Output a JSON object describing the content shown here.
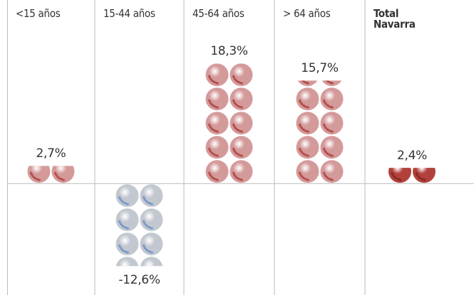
{
  "chart_data": {
    "type": "pictogram-bar",
    "categories": [
      "<15 años",
      "15-44 años",
      "45-64 años",
      "> 64 años",
      "Total Navarra"
    ],
    "values": [
      2.7,
      -12.6,
      18.3,
      15.7,
      2.4
    ],
    "value_labels": [
      "2,7%",
      "-12,6%",
      "18,3%",
      "15,7%",
      "2,4%"
    ],
    "colors": [
      "#d49a9a",
      "#c3c8d0",
      "#d49a9a",
      "#d49a9a",
      "#b2413c"
    ],
    "ylim": [
      -17,
      28
    ]
  }
}
